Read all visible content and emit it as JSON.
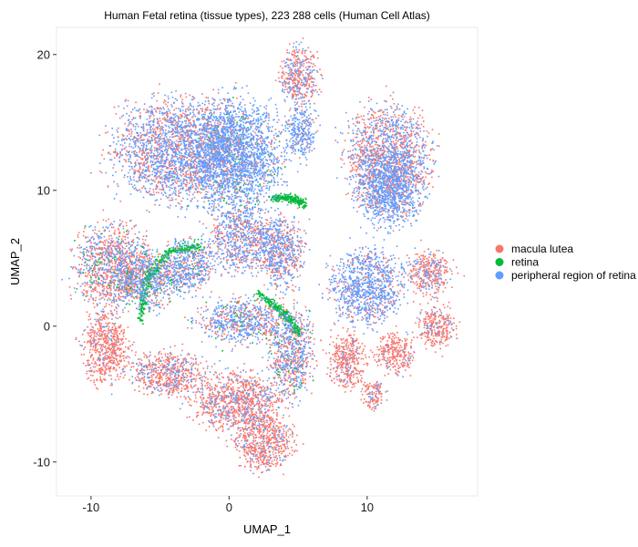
{
  "chart_data": {
    "type": "scatter",
    "title": "Human Fetal retina (tissue types), 223 288 cells (Human Cell Atlas)",
    "xlabel": "UMAP_1",
    "ylabel": "UMAP_2",
    "xlim": [
      -12.5,
      18
    ],
    "ylim": [
      -12.5,
      22
    ],
    "xticks": [
      -10,
      0,
      10
    ],
    "yticks": [
      -10,
      0,
      10,
      20
    ],
    "grid": false,
    "legend_position": "right",
    "series": [
      {
        "name": "macula lutea",
        "color": "#F8766D"
      },
      {
        "name": "retina",
        "color": "#00BA38"
      },
      {
        "name": "peripheral region of retina",
        "color": "#619CFF"
      }
    ],
    "clusters": [
      {
        "x": -3.5,
        "y": 13.0,
        "rx": 4.5,
        "ry": 3.5,
        "mix": [
          0.45,
          0.0,
          0.55
        ]
      },
      {
        "x": 0.5,
        "y": 12.5,
        "rx": 3.2,
        "ry": 3.8,
        "mix": [
          0.15,
          0.05,
          0.8
        ]
      },
      {
        "x": 5.0,
        "y": 18.5,
        "rx": 1.3,
        "ry": 2.0,
        "mix": [
          0.7,
          0.0,
          0.3
        ]
      },
      {
        "x": 5.2,
        "y": 14.5,
        "rx": 1.0,
        "ry": 2.0,
        "mix": [
          0.2,
          0.0,
          0.8
        ]
      },
      {
        "x": 11.5,
        "y": 12.5,
        "rx": 2.8,
        "ry": 3.5,
        "mix": [
          0.55,
          0.0,
          0.45
        ]
      },
      {
        "x": 11.5,
        "y": 10.0,
        "rx": 2.2,
        "ry": 2.5,
        "mix": [
          0.15,
          0.0,
          0.85
        ]
      },
      {
        "x": -8.5,
        "y": 4.5,
        "rx": 2.5,
        "ry": 2.8,
        "mix": [
          0.65,
          0.05,
          0.3
        ]
      },
      {
        "x": -6.0,
        "y": 3.5,
        "rx": 2.2,
        "ry": 2.0,
        "mix": [
          0.4,
          0.1,
          0.5
        ]
      },
      {
        "x": -3.0,
        "y": 4.5,
        "rx": 1.8,
        "ry": 1.8,
        "mix": [
          0.4,
          0.05,
          0.55
        ]
      },
      {
        "x": 1.0,
        "y": 6.5,
        "rx": 2.2,
        "ry": 2.2,
        "mix": [
          0.45,
          0.0,
          0.55
        ]
      },
      {
        "x": 3.8,
        "y": 5.5,
        "rx": 1.5,
        "ry": 2.5,
        "mix": [
          0.45,
          0.0,
          0.55
        ]
      },
      {
        "x": -9.0,
        "y": -1.5,
        "rx": 1.5,
        "ry": 2.5,
        "mix": [
          0.9,
          0.0,
          0.1
        ]
      },
      {
        "x": 1.0,
        "y": 0.5,
        "rx": 3.0,
        "ry": 1.5,
        "mix": [
          0.4,
          0.05,
          0.55
        ]
      },
      {
        "x": 4.5,
        "y": -2.0,
        "rx": 1.5,
        "ry": 3.0,
        "mix": [
          0.5,
          0.05,
          0.45
        ]
      },
      {
        "x": -4.5,
        "y": -3.5,
        "rx": 2.5,
        "ry": 1.5,
        "mix": [
          0.75,
          0.0,
          0.25
        ]
      },
      {
        "x": 0.5,
        "y": -5.5,
        "rx": 3.0,
        "ry": 2.0,
        "mix": [
          0.8,
          0.0,
          0.2
        ]
      },
      {
        "x": 2.5,
        "y": -8.5,
        "rx": 2.0,
        "ry": 2.0,
        "mix": [
          0.85,
          0.0,
          0.15
        ]
      },
      {
        "x": 10.0,
        "y": 3.0,
        "rx": 2.5,
        "ry": 2.5,
        "mix": [
          0.25,
          0.0,
          0.75
        ]
      },
      {
        "x": 14.5,
        "y": 4.0,
        "rx": 1.5,
        "ry": 1.5,
        "mix": [
          0.75,
          0.0,
          0.25
        ]
      },
      {
        "x": 15.0,
        "y": 0.0,
        "rx": 1.2,
        "ry": 1.5,
        "mix": [
          0.85,
          0.0,
          0.15
        ]
      },
      {
        "x": 8.5,
        "y": -2.5,
        "rx": 1.2,
        "ry": 2.0,
        "mix": [
          0.9,
          0.0,
          0.1
        ]
      },
      {
        "x": 12.0,
        "y": -2.0,
        "rx": 1.2,
        "ry": 1.5,
        "mix": [
          0.9,
          0.0,
          0.1
        ]
      },
      {
        "x": 10.5,
        "y": -5.0,
        "rx": 0.8,
        "ry": 1.0,
        "mix": [
          0.85,
          0.0,
          0.15
        ]
      }
    ],
    "trajectories": [
      {
        "points": [
          [
            -6.5,
            0.5
          ],
          [
            -6.0,
            3.5
          ],
          [
            -4.5,
            5.5
          ],
          [
            -2.0,
            6.0
          ]
        ]
      },
      {
        "points": [
          [
            2.0,
            2.5
          ],
          [
            4.0,
            1.0
          ],
          [
            5.0,
            -0.5
          ]
        ]
      },
      {
        "points": [
          [
            3.0,
            9.5
          ],
          [
            4.5,
            9.5
          ],
          [
            5.5,
            9.0
          ]
        ]
      }
    ]
  }
}
